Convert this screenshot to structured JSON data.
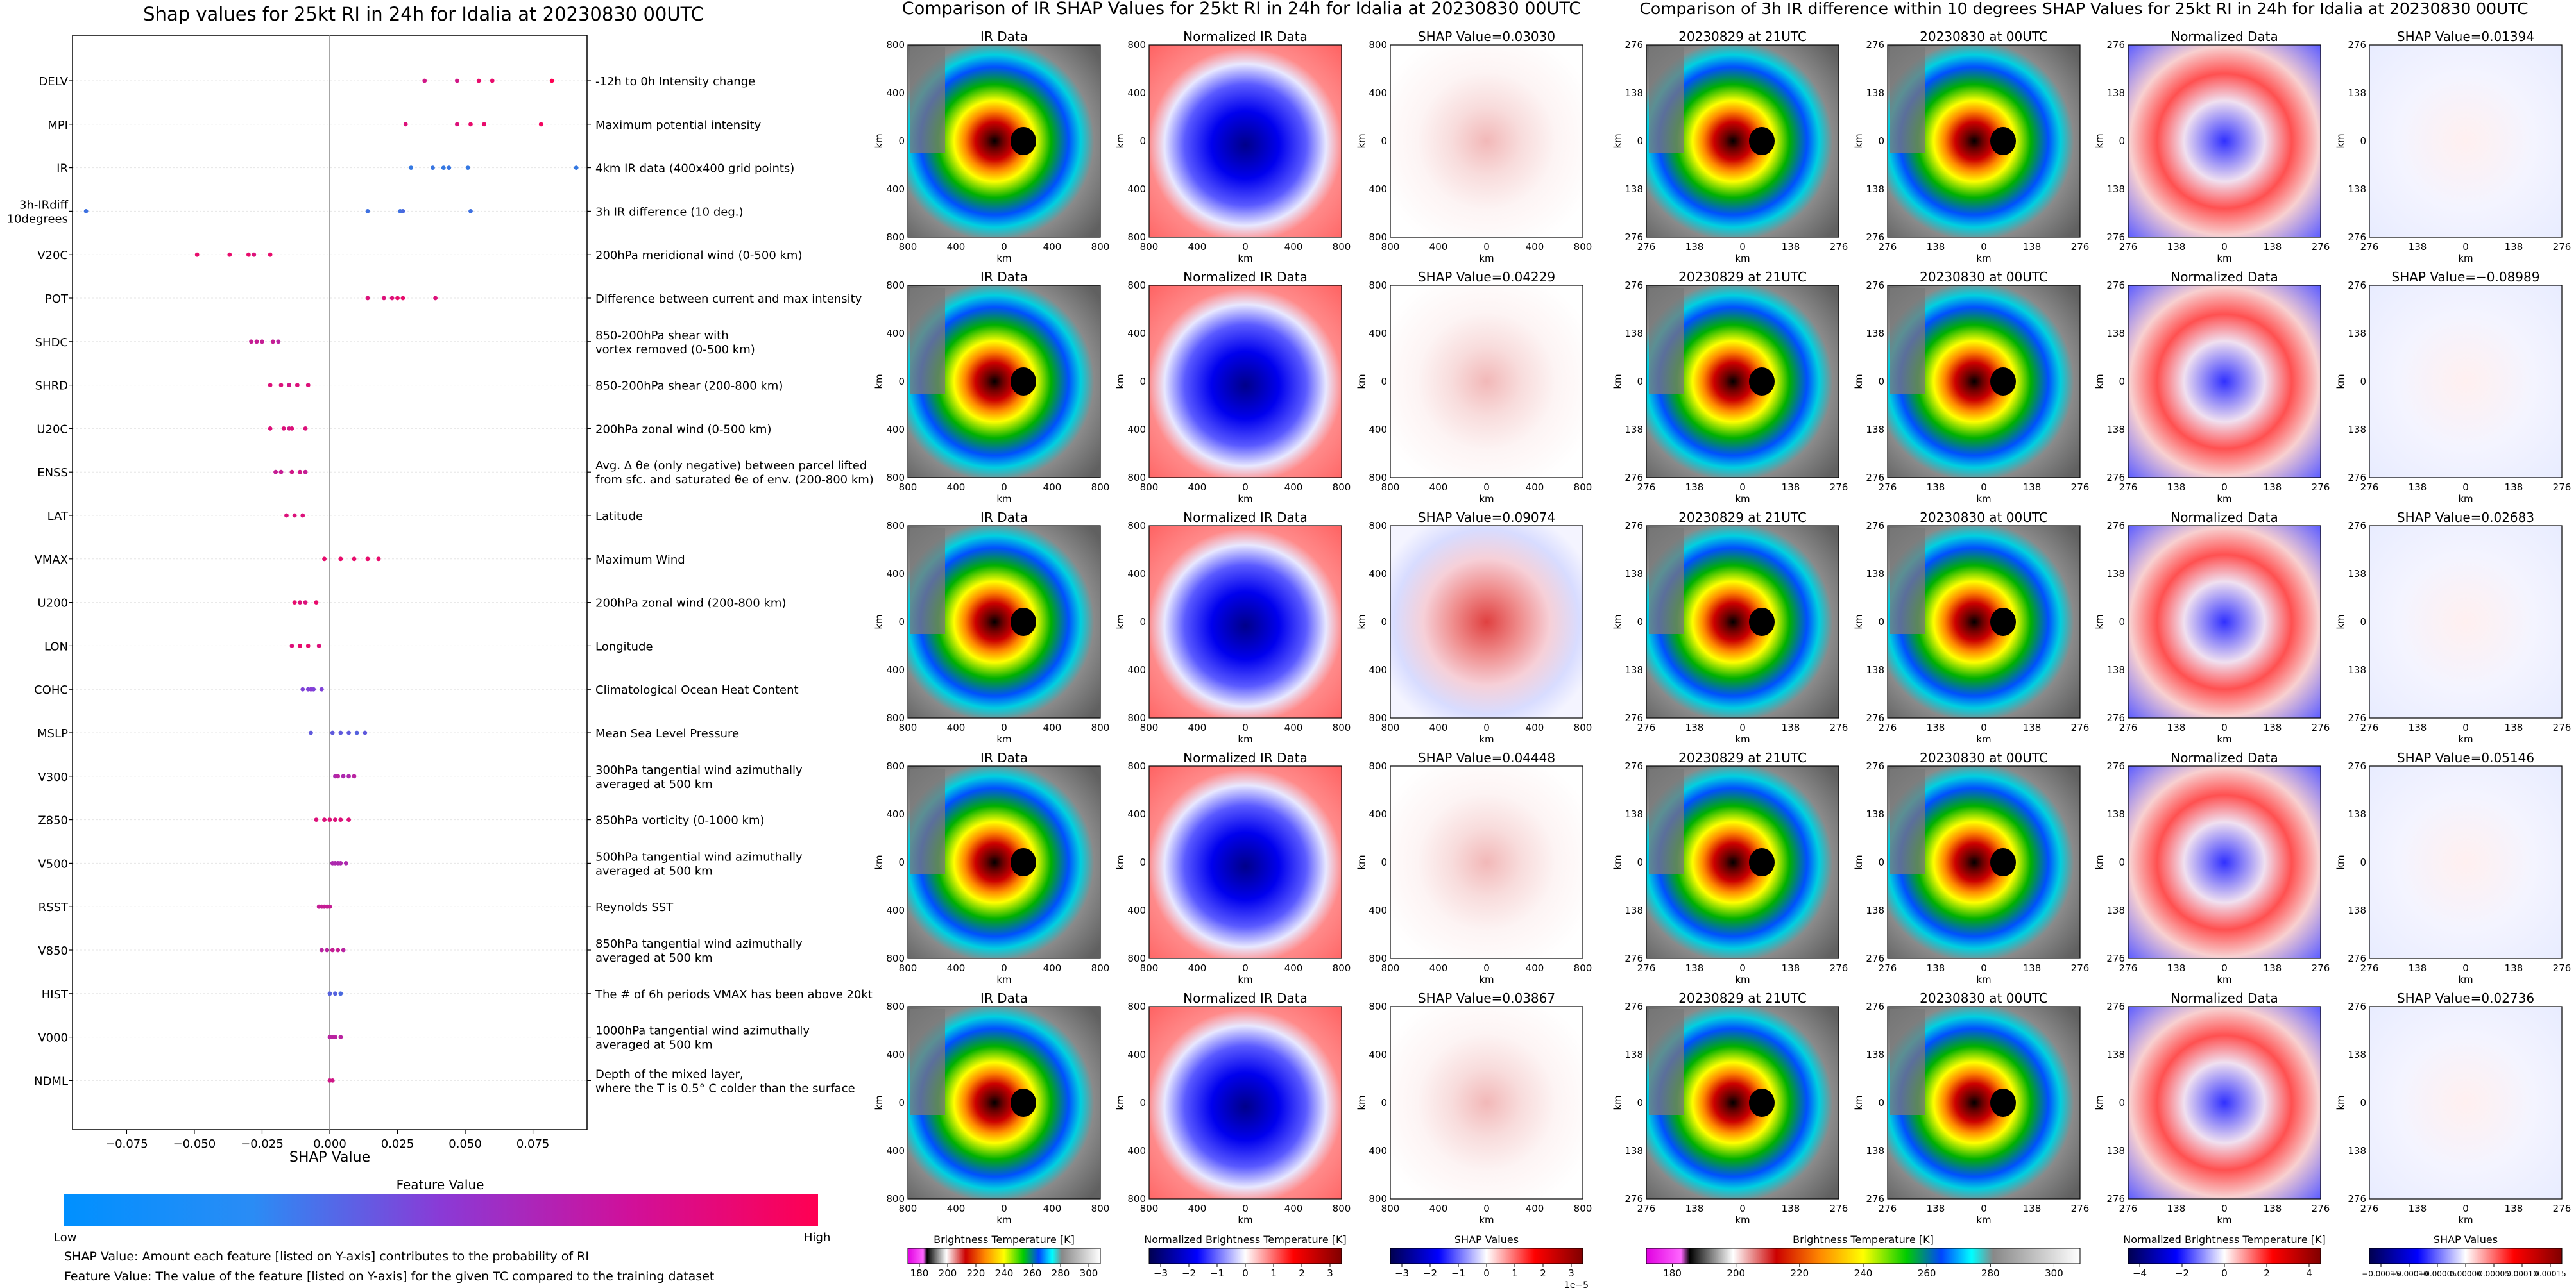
{
  "summary_plot": {
    "title": "Shap values for 25kt RI in 24h for Idalia at 20230830 00UTC",
    "xlabel": "SHAP Value",
    "x_ticks": [
      "−0.075",
      "−0.050",
      "−0.025",
      "0.000",
      "0.025",
      "0.050",
      "0.075"
    ],
    "colorbar_title": "Feature Value",
    "colorbar_low": "Low",
    "colorbar_high": "High",
    "note_1": "SHAP Value: Amount each feature [listed on Y-axis] contributes to the probability of RI",
    "note_2": "Feature Value: The value of the feature [listed on Y-axis] for the given TC compared to the training dataset",
    "low_color": "#1e88e5",
    "high_color": "#ff0052"
  },
  "panel_group_1": {
    "title": "Comparison of IR SHAP Values for 25kt RI in 24h for Idalia at 20230830 00UTC",
    "col_titles": [
      "IR Data",
      "Normalized IR Data"
    ],
    "shap_titles": [
      "SHAP Value=0.03030",
      "SHAP Value=0.04229",
      "SHAP Value=0.09074",
      "SHAP Value=0.04448",
      "SHAP Value=0.03867"
    ],
    "tick_labels": [
      "800",
      "400",
      "0",
      "400",
      "800"
    ],
    "axis_label": "km",
    "colorbars": [
      {
        "label": "Brightness Temperature [K]",
        "ticks": [
          "180",
          "200",
          "220",
          "240",
          "260",
          "280",
          "300"
        ]
      },
      {
        "label": "Normalized Brightness Temperature [K]",
        "ticks": [
          "−3",
          "−2",
          "−1",
          "0",
          "1",
          "2",
          "3"
        ]
      },
      {
        "label": "SHAP Values",
        "ticks": [
          "−3",
          "−2",
          "−1",
          "0",
          "1",
          "2",
          "3"
        ],
        "offset": "1e−5"
      }
    ]
  },
  "panel_group_2": {
    "title": "Comparison of 3h IR difference within 10 degrees SHAP Values for 25kt RI in 24h for Idalia at 20230830 00UTC",
    "col_titles": [
      "20230829 at 21UTC",
      "20230830 at 00UTC",
      "Normalized Data"
    ],
    "shap_titles": [
      "SHAP Value=0.01394",
      "SHAP Value=−0.08989",
      "SHAP Value=0.02683",
      "SHAP Value=0.05146",
      "SHAP Value=0.02736"
    ],
    "tick_labels": [
      "276",
      "138",
      "0",
      "138",
      "276"
    ],
    "axis_label": "km",
    "colorbars": [
      {
        "label": "Brightness Temperature [K]",
        "ticks": [
          "180",
          "200",
          "220",
          "240",
          "260",
          "280",
          "300"
        ]
      },
      {
        "label": "Normalized Brightness Temperature [K]",
        "ticks": [
          "−4",
          "−2",
          "0",
          "2",
          "4"
        ]
      },
      {
        "label": "SHAP Values",
        "ticks": [
          "−0.00015",
          "−0.00010",
          "−0.00005",
          "0.00000",
          "0.00005",
          "0.00010",
          "0.00015"
        ]
      }
    ]
  },
  "chart_data": [
    {
      "type": "scatter",
      "title": "Shap values for 25kt RI in 24h for Idalia at 20230830 00UTC",
      "xlabel": "SHAP Value",
      "ylabel": "",
      "xlim": [
        -0.095,
        0.095
      ],
      "grid": false,
      "legend": "colorbar below: Feature Value Low to High",
      "features": [
        {
          "code": "DELV",
          "desc": "-12h to 0h Intensity change",
          "points": [
            [
              0.035,
              0.8
            ],
            [
              0.047,
              0.8
            ],
            [
              0.055,
              0.9
            ],
            [
              0.06,
              0.9
            ],
            [
              0.082,
              1.0
            ]
          ]
        },
        {
          "code": "MPI",
          "desc": "Maximum potential intensity",
          "points": [
            [
              0.028,
              0.85
            ],
            [
              0.047,
              0.85
            ],
            [
              0.052,
              0.9
            ],
            [
              0.057,
              0.9
            ],
            [
              0.078,
              0.95
            ]
          ]
        },
        {
          "code": "IR",
          "desc": "4km IR data (400x400 grid points)",
          "points": [
            [
              0.03,
              0.1
            ],
            [
              0.038,
              0.12
            ],
            [
              0.042,
              0.1
            ],
            [
              0.044,
              0.12
            ],
            [
              0.051,
              0.1
            ],
            [
              0.091,
              0.1
            ]
          ]
        },
        {
          "code": "3h-IRdiff\n10degrees",
          "desc": "3h IR difference (10 deg.)",
          "points": [
            [
              -0.09,
              0.15
            ],
            [
              0.014,
              0.15
            ],
            [
              0.026,
              0.15
            ],
            [
              0.027,
              0.2
            ],
            [
              0.052,
              0.15
            ]
          ]
        },
        {
          "code": "V20C",
          "desc": "200hPa meridional wind (0-500 km)",
          "points": [
            [
              -0.049,
              0.9
            ],
            [
              -0.037,
              0.9
            ],
            [
              -0.03,
              0.9
            ],
            [
              -0.028,
              0.85
            ],
            [
              -0.022,
              0.9
            ]
          ]
        },
        {
          "code": "POT",
          "desc": "Difference between current and max intensity",
          "points": [
            [
              0.014,
              0.85
            ],
            [
              0.02,
              0.85
            ],
            [
              0.023,
              0.85
            ],
            [
              0.025,
              0.9
            ],
            [
              0.027,
              0.9
            ],
            [
              0.039,
              0.85
            ]
          ]
        },
        {
          "code": "SHDC",
          "desc": "850-200hPa shear with\nvortex removed (0-500 km)",
          "points": [
            [
              -0.029,
              0.75
            ],
            [
              -0.027,
              0.75
            ],
            [
              -0.025,
              0.75
            ],
            [
              -0.021,
              0.75
            ],
            [
              -0.019,
              0.7
            ]
          ]
        },
        {
          "code": "SHRD",
          "desc": "850-200hPa shear (200-800 km)",
          "points": [
            [
              -0.022,
              0.85
            ],
            [
              -0.018,
              0.85
            ],
            [
              -0.015,
              0.8
            ],
            [
              -0.012,
              0.85
            ],
            [
              -0.008,
              0.85
            ]
          ]
        },
        {
          "code": "U20C",
          "desc": "200hPa zonal wind (0-500 km)",
          "points": [
            [
              -0.022,
              0.85
            ],
            [
              -0.017,
              0.85
            ],
            [
              -0.015,
              0.8
            ],
            [
              -0.014,
              0.85
            ],
            [
              -0.009,
              0.85
            ]
          ]
        },
        {
          "code": "ENSS",
          "desc": "Avg. Δ θe (only negative) between parcel lifted\nfrom sfc. and saturated θe of env. (200-800 km)",
          "points": [
            [
              -0.02,
              0.75
            ],
            [
              -0.018,
              0.75
            ],
            [
              -0.014,
              0.8
            ],
            [
              -0.011,
              0.8
            ],
            [
              -0.009,
              0.75
            ]
          ]
        },
        {
          "code": "LAT",
          "desc": "Latitude",
          "points": [
            [
              -0.016,
              0.85
            ],
            [
              -0.013,
              0.85
            ],
            [
              -0.01,
              0.85
            ]
          ]
        },
        {
          "code": "VMAX",
          "desc": "Maximum Wind",
          "points": [
            [
              -0.002,
              0.9
            ],
            [
              0.004,
              0.9
            ],
            [
              0.009,
              0.9
            ],
            [
              0.014,
              0.9
            ],
            [
              0.018,
              0.9
            ]
          ]
        },
        {
          "code": "U200",
          "desc": "200hPa zonal wind (200-800 km)",
          "points": [
            [
              -0.013,
              0.9
            ],
            [
              -0.011,
              0.85
            ],
            [
              -0.009,
              0.85
            ],
            [
              -0.005,
              0.9
            ]
          ]
        },
        {
          "code": "LON",
          "desc": "Longitude",
          "points": [
            [
              -0.014,
              0.85
            ],
            [
              -0.011,
              0.9
            ],
            [
              -0.008,
              0.9
            ],
            [
              -0.004,
              0.85
            ]
          ]
        },
        {
          "code": "COHC",
          "desc": "Climatological Ocean Heat Content",
          "points": [
            [
              -0.01,
              0.45
            ],
            [
              -0.008,
              0.45
            ],
            [
              -0.007,
              0.5
            ],
            [
              -0.006,
              0.45
            ],
            [
              -0.003,
              0.45
            ]
          ]
        },
        {
          "code": "MSLP",
          "desc": "Mean Sea Level Pressure",
          "points": [
            [
              -0.007,
              0.3
            ],
            [
              0.001,
              0.3
            ],
            [
              0.004,
              0.3
            ],
            [
              0.007,
              0.3
            ],
            [
              0.01,
              0.25
            ],
            [
              0.013,
              0.3
            ]
          ]
        },
        {
          "code": "V300",
          "desc": "300hPa tangential wind azimuthally\naveraged at 500 km",
          "points": [
            [
              0.002,
              0.65
            ],
            [
              0.003,
              0.7
            ],
            [
              0.005,
              0.65
            ],
            [
              0.007,
              0.65
            ],
            [
              0.009,
              0.7
            ]
          ]
        },
        {
          "code": "Z850",
          "desc": "850hPa vorticity (0-1000 km)",
          "points": [
            [
              -0.005,
              0.85
            ],
            [
              -0.002,
              0.85
            ],
            [
              0.0,
              0.85
            ],
            [
              0.002,
              0.85
            ],
            [
              0.004,
              0.85
            ],
            [
              0.007,
              0.85
            ]
          ]
        },
        {
          "code": "V500",
          "desc": "500hPa tangential wind azimuthally\naveraged at 500 km",
          "points": [
            [
              0.001,
              0.65
            ],
            [
              0.002,
              0.65
            ],
            [
              0.003,
              0.65
            ],
            [
              0.004,
              0.65
            ],
            [
              0.006,
              0.65
            ]
          ]
        },
        {
          "code": "RSST",
          "desc": "Reynolds SST",
          "points": [
            [
              -0.004,
              0.75
            ],
            [
              -0.003,
              0.75
            ],
            [
              -0.002,
              0.75
            ],
            [
              -0.001,
              0.75
            ],
            [
              0.0,
              0.75
            ]
          ]
        },
        {
          "code": "V850",
          "desc": "850hPa tangential wind azimuthally\naveraged at 500 km",
          "points": [
            [
              -0.003,
              0.7
            ],
            [
              -0.001,
              0.7
            ],
            [
              0.001,
              0.75
            ],
            [
              0.003,
              0.75
            ],
            [
              0.005,
              0.7
            ]
          ]
        },
        {
          "code": "HIST",
          "desc": "The # of 6h periods VMAX has been above 20kt",
          "points": [
            [
              0.0,
              0.25
            ],
            [
              0.002,
              0.25
            ],
            [
              0.004,
              0.2
            ]
          ]
        },
        {
          "code": "V000",
          "desc": "1000hPa tangential wind azimuthally\naveraged at 500 km",
          "points": [
            [
              0.0,
              0.7
            ],
            [
              0.001,
              0.7
            ],
            [
              0.002,
              0.7
            ],
            [
              0.004,
              0.7
            ]
          ]
        },
        {
          "code": "NDML",
          "desc": "Depth of the mixed layer,\nwhere the T is 0.5° C colder than the surface",
          "points": [
            [
              0.0,
              0.8
            ],
            [
              0.001,
              0.8
            ]
          ]
        }
      ]
    },
    {
      "type": "heatmap",
      "title": "Comparison of IR SHAP Values for 25kt RI in 24h for Idalia at 20230830 00UTC",
      "xlabel": "km",
      "ylabel": "km",
      "xlim": [
        -800,
        800
      ],
      "ylim": [
        -800,
        800
      ],
      "shap_values": [
        0.0303,
        0.04229,
        0.09074,
        0.04448,
        0.03867
      ]
    },
    {
      "type": "heatmap",
      "title": "Comparison of 3h IR difference within 10 degrees SHAP Values for 25kt RI in 24h for Idalia at 20230830 00UTC",
      "xlabel": "km",
      "ylabel": "km",
      "xlim": [
        -276,
        276
      ],
      "ylim": [
        -276,
        276
      ],
      "shap_values": [
        0.01394,
        -0.08989,
        0.02683,
        0.05146,
        0.02736
      ]
    }
  ]
}
